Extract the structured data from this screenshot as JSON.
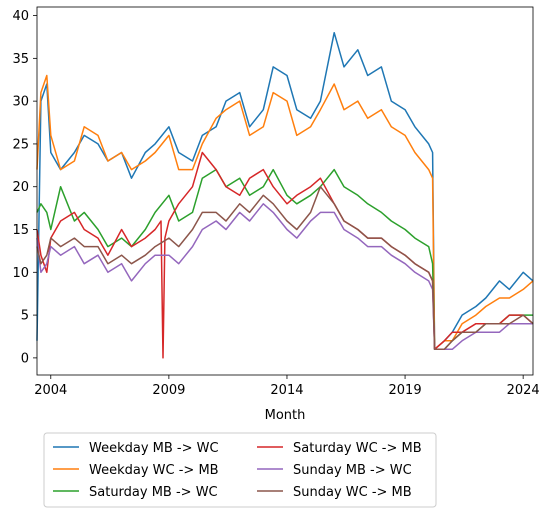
{
  "chart_data": {
    "type": "line",
    "title": "",
    "xlabel": "Month",
    "ylabel": "",
    "xlim": [
      "2003-06",
      "2024-06"
    ],
    "ylim": [
      -2,
      41
    ],
    "x_ticks": [
      {
        "value": "2004-01",
        "label": "2004"
      },
      {
        "value": "2009-01",
        "label": "2009"
      },
      {
        "value": "2014-01",
        "label": "2014"
      },
      {
        "value": "2019-01",
        "label": "2019"
      },
      {
        "value": "2024-01",
        "label": "2024"
      }
    ],
    "y_ticks": [
      0,
      5,
      10,
      15,
      20,
      25,
      30,
      35,
      40
    ],
    "grid": false,
    "legend": {
      "placement": "below",
      "columns": 2
    },
    "series": [
      {
        "name": "Weekday MB -> WC",
        "color": "#1f77b4",
        "x": [
          "2003-06",
          "2003-08",
          "2003-11",
          "2004-01",
          "2004-06",
          "2005-01",
          "2005-06",
          "2006-01",
          "2006-06",
          "2007-01",
          "2007-06",
          "2008-01",
          "2008-06",
          "2009-01",
          "2009-06",
          "2010-01",
          "2010-06",
          "2011-01",
          "2011-06",
          "2012-01",
          "2012-06",
          "2013-01",
          "2013-06",
          "2014-01",
          "2014-06",
          "2015-01",
          "2015-06",
          "2016-01",
          "2016-06",
          "2017-01",
          "2017-06",
          "2018-01",
          "2018-06",
          "2019-01",
          "2019-06",
          "2020-01",
          "2020-03",
          "2020-04",
          "2020-09",
          "2021-01",
          "2021-06",
          "2022-01",
          "2022-06",
          "2023-01",
          "2023-06",
          "2024-01",
          "2024-06"
        ],
        "y": [
          2,
          30,
          32,
          24,
          22,
          24,
          26,
          25,
          23,
          24,
          21,
          24,
          25,
          27,
          24,
          23,
          26,
          27,
          30,
          31,
          27,
          29,
          34,
          33,
          29,
          28,
          30,
          38,
          34,
          36,
          33,
          34,
          30,
          29,
          27,
          25,
          24,
          1,
          2,
          3,
          5,
          6,
          7,
          9,
          8,
          10,
          9
        ]
      },
      {
        "name": "Weekday WC -> MB",
        "color": "#ff7f0e",
        "x": [
          "2003-06",
          "2003-08",
          "2003-11",
          "2004-01",
          "2004-06",
          "2005-01",
          "2005-06",
          "2006-01",
          "2006-06",
          "2007-01",
          "2007-06",
          "2008-01",
          "2008-06",
          "2009-01",
          "2009-06",
          "2010-01",
          "2010-06",
          "2011-01",
          "2011-06",
          "2012-01",
          "2012-06",
          "2013-01",
          "2013-06",
          "2014-01",
          "2014-06",
          "2015-01",
          "2015-06",
          "2016-01",
          "2016-06",
          "2017-01",
          "2017-06",
          "2018-01",
          "2018-06",
          "2019-01",
          "2019-06",
          "2020-01",
          "2020-03",
          "2020-04",
          "2020-09",
          "2021-01",
          "2021-06",
          "2022-01",
          "2022-06",
          "2023-01",
          "2023-06",
          "2024-01",
          "2024-06"
        ],
        "y": [
          22,
          31,
          33,
          26,
          22,
          23,
          27,
          26,
          23,
          24,
          22,
          23,
          24,
          26,
          22,
          22,
          25,
          28,
          29,
          30,
          26,
          27,
          31,
          30,
          26,
          27,
          29,
          32,
          29,
          30,
          28,
          29,
          27,
          26,
          24,
          22,
          21,
          1,
          2,
          2,
          4,
          5,
          6,
          7,
          7,
          8,
          9
        ]
      },
      {
        "name": "Saturday MB -> WC",
        "color": "#2ca02c",
        "x": [
          "2003-06",
          "2003-08",
          "2003-11",
          "2004-01",
          "2004-06",
          "2005-01",
          "2005-06",
          "2006-01",
          "2006-06",
          "2007-01",
          "2007-06",
          "2008-01",
          "2008-06",
          "2009-01",
          "2009-06",
          "2010-01",
          "2010-06",
          "2011-01",
          "2011-06",
          "2012-01",
          "2012-06",
          "2013-01",
          "2013-06",
          "2014-01",
          "2014-06",
          "2015-01",
          "2015-06",
          "2016-01",
          "2016-06",
          "2017-01",
          "2017-06",
          "2018-01",
          "2018-06",
          "2019-01",
          "2019-06",
          "2020-01",
          "2020-03",
          "2020-04",
          "2020-09",
          "2021-01",
          "2021-06",
          "2022-01",
          "2022-06",
          "2023-01",
          "2023-06",
          "2024-01",
          "2024-06"
        ],
        "y": [
          17,
          18,
          17,
          15,
          20,
          16,
          17,
          15,
          13,
          14,
          13,
          15,
          17,
          19,
          16,
          17,
          21,
          22,
          20,
          21,
          19,
          20,
          22,
          19,
          18,
          19,
          20,
          22,
          20,
          19,
          18,
          17,
          16,
          15,
          14,
          13,
          11,
          1,
          1,
          2,
          3,
          3,
          4,
          4,
          5,
          5,
          5
        ]
      },
      {
        "name": "Saturday WC -> MB",
        "color": "#d62728",
        "x": [
          "2003-06",
          "2003-08",
          "2003-11",
          "2004-01",
          "2004-06",
          "2005-01",
          "2005-06",
          "2006-01",
          "2006-06",
          "2007-01",
          "2007-06",
          "2008-01",
          "2008-06",
          "2008-09",
          "2008-10",
          "2008-11",
          "2009-01",
          "2009-06",
          "2010-01",
          "2010-06",
          "2011-01",
          "2011-06",
          "2012-01",
          "2012-06",
          "2013-01",
          "2013-06",
          "2014-01",
          "2014-06",
          "2015-01",
          "2015-06",
          "2016-01",
          "2016-06",
          "2017-01",
          "2017-06",
          "2018-01",
          "2018-06",
          "2019-01",
          "2019-06",
          "2020-01",
          "2020-03",
          "2020-04",
          "2020-09",
          "2021-01",
          "2021-06",
          "2022-01",
          "2022-06",
          "2023-01",
          "2023-06",
          "2024-01",
          "2024-06"
        ],
        "y": [
          15,
          12,
          10,
          14,
          16,
          17,
          15,
          14,
          12,
          15,
          13,
          14,
          15,
          16,
          0,
          14,
          16,
          18,
          20,
          24,
          22,
          20,
          19,
          21,
          22,
          20,
          18,
          19,
          20,
          21,
          18,
          16,
          15,
          14,
          14,
          13,
          12,
          11,
          10,
          9,
          1,
          2,
          3,
          3,
          4,
          4,
          4,
          5,
          5,
          4
        ]
      },
      {
        "name": "Sunday MB -> WC",
        "color": "#9467bd",
        "x": [
          "2003-06",
          "2003-08",
          "2003-11",
          "2004-01",
          "2004-06",
          "2005-01",
          "2005-06",
          "2006-01",
          "2006-06",
          "2007-01",
          "2007-06",
          "2008-01",
          "2008-06",
          "2009-01",
          "2009-06",
          "2010-01",
          "2010-06",
          "2011-01",
          "2011-06",
          "2012-01",
          "2012-06",
          "2013-01",
          "2013-06",
          "2014-01",
          "2014-06",
          "2015-01",
          "2015-06",
          "2016-01",
          "2016-06",
          "2017-01",
          "2017-06",
          "2018-01",
          "2018-06",
          "2019-01",
          "2019-06",
          "2020-01",
          "2020-03",
          "2020-04",
          "2020-09",
          "2021-01",
          "2021-06",
          "2022-01",
          "2022-06",
          "2023-01",
          "2023-06",
          "2024-01",
          "2024-06"
        ],
        "y": [
          14,
          10,
          11,
          13,
          12,
          13,
          11,
          12,
          10,
          11,
          9,
          11,
          12,
          12,
          11,
          13,
          15,
          16,
          15,
          17,
          16,
          18,
          17,
          15,
          14,
          16,
          17,
          17,
          15,
          14,
          13,
          13,
          12,
          11,
          10,
          9,
          8,
          1,
          1,
          1,
          2,
          3,
          3,
          3,
          4,
          4,
          4
        ]
      },
      {
        "name": "Sunday WC -> MB",
        "color": "#8c564b",
        "x": [
          "2003-06",
          "2003-08",
          "2003-11",
          "2004-01",
          "2004-06",
          "2005-01",
          "2005-06",
          "2006-01",
          "2006-06",
          "2007-01",
          "2007-06",
          "2008-01",
          "2008-06",
          "2009-01",
          "2009-06",
          "2010-01",
          "2010-06",
          "2011-01",
          "2011-06",
          "2012-01",
          "2012-06",
          "2013-01",
          "2013-06",
          "2014-01",
          "2014-06",
          "2015-01",
          "2015-06",
          "2016-01",
          "2016-06",
          "2017-01",
          "2017-06",
          "2018-01",
          "2018-06",
          "2019-01",
          "2019-06",
          "2020-01",
          "2020-03",
          "2020-04",
          "2020-09",
          "2021-01",
          "2021-06",
          "2022-01",
          "2022-06",
          "2023-01",
          "2023-06",
          "2024-01",
          "2024-06"
        ],
        "y": [
          13,
          11,
          12,
          14,
          13,
          14,
          13,
          13,
          11,
          12,
          11,
          12,
          13,
          14,
          13,
          15,
          17,
          17,
          16,
          18,
          17,
          19,
          18,
          16,
          15,
          17,
          20,
          18,
          16,
          15,
          14,
          14,
          13,
          12,
          11,
          10,
          9,
          1,
          1,
          2,
          3,
          3,
          4,
          4,
          4,
          5,
          4
        ]
      }
    ]
  }
}
